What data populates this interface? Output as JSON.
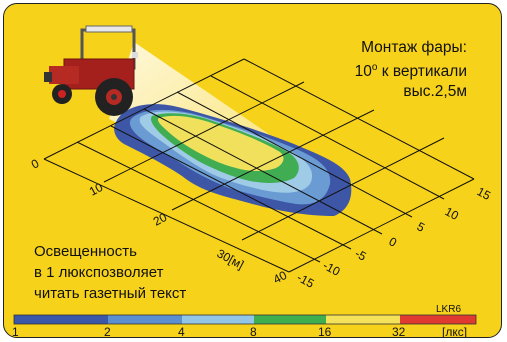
{
  "mount_note": {
    "line1": "Монтаж фары:",
    "line2_value": "10",
    "line2_sup": "o",
    "line2_rest": " к вертикали",
    "line3": "выс.2,5м"
  },
  "lux_note": {
    "line1": "Освещенность",
    "line2": "в 1 люкспозволяет",
    "line3": "читать газетный текст"
  },
  "model_code": "LKR6",
  "axis_distance": {
    "ticks": [
      "0",
      "10",
      "20",
      "30[м]",
      "40"
    ]
  },
  "axis_lateral": {
    "ticks": [
      "15",
      "10",
      "5",
      "0",
      "-5",
      "-10",
      "-15"
    ]
  },
  "legend": {
    "ticks": [
      "1",
      "2",
      "4",
      "8",
      "16",
      "32"
    ],
    "unit": "[лкс]",
    "colors": [
      "#3a57a8",
      "#5c8fcf",
      "#93c6e6",
      "#3fae4f",
      "#f3e25a",
      "#e03a30"
    ]
  },
  "zone_colors": {
    "blue_dark": "#3e56a6",
    "blue_mid": "#6a9bd3",
    "blue_light": "#9fcbe6",
    "green": "#41ad52",
    "yellow": "#f1e05c"
  },
  "icons": [
    "tractor-icon",
    "light-beam"
  ]
}
